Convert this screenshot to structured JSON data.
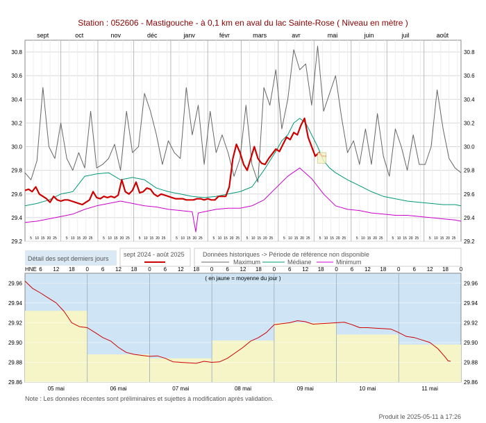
{
  "title": "Station : 052606     -   Mastigouche - à 0,1 km en aval du lac Sainte-Rose   ( Niveau en mètre )",
  "legend": {
    "recent_box": "Détail des sept derniers jours",
    "period_label": "sept 2024 - août 2025",
    "historic_header": "Données historiques -> Période de référence non disponible",
    "max_label": "Maximum",
    "median_label": "Médiane",
    "min_label": "Minimum"
  },
  "bottom_header": "( en jaune = moyenne du jour )",
  "hne_label": "HNE",
  "note": "Note : Les données récentes sont préliminaires et sujettes à modification après validation.",
  "produced": "Produit le 2025-05-11 à 17:26",
  "colors": {
    "current": "#cc0000",
    "maximum": "#666666",
    "median": "#009977",
    "minimum": "#cc00cc",
    "recent_bg": "#cfe5f5",
    "daily_mean": "#f5f5c8"
  },
  "chart_data": [
    {
      "type": "line",
      "months": [
        "sept",
        "oct",
        "nov",
        "déc",
        "janv",
        "févr",
        "mars",
        "avr",
        "mai",
        "juin",
        "juil",
        "août"
      ],
      "ylim": [
        29.2,
        30.9
      ],
      "yticks": [
        "29.2",
        "29.4",
        "29.6",
        "29.8",
        "30.0",
        "30.2",
        "30.4",
        "30.6",
        "30.8"
      ],
      "day_ticks": [
        "5",
        "10",
        "15",
        "20",
        "25"
      ],
      "series": [
        {
          "name": "current",
          "x": [
            0,
            3,
            6,
            9,
            12,
            15,
            18,
            21,
            24,
            27,
            30,
            33,
            36,
            39,
            42,
            45,
            48,
            51,
            54,
            57,
            60,
            63,
            66,
            69,
            72,
            75,
            78,
            81,
            84,
            87,
            90,
            93,
            96,
            99,
            102,
            105,
            108,
            111,
            114,
            117,
            120,
            123,
            126,
            129,
            132,
            135,
            138,
            141,
            144,
            147,
            150,
            153,
            156,
            159,
            162,
            165,
            168,
            171,
            174,
            177,
            180,
            183,
            186,
            189,
            192,
            195,
            198,
            201,
            204,
            207,
            210,
            213,
            216,
            219,
            222,
            225,
            228,
            231,
            234,
            237,
            240,
            243,
            246,
            249,
            252
          ],
          "values": [
            29.63,
            29.64,
            29.62,
            29.66,
            29.6,
            29.58,
            29.56,
            29.53,
            29.58,
            29.55,
            29.54,
            29.55,
            29.55,
            29.54,
            29.53,
            29.52,
            29.51,
            29.53,
            29.55,
            29.62,
            29.57,
            29.56,
            29.58,
            29.57,
            29.58,
            29.57,
            29.59,
            29.72,
            29.62,
            29.6,
            29.63,
            29.7,
            29.61,
            29.62,
            29.65,
            29.64,
            29.6,
            29.58,
            29.6,
            29.59,
            29.58,
            29.57,
            29.56,
            29.56,
            29.56,
            29.55,
            29.55,
            29.55,
            29.56,
            29.56,
            29.55,
            29.56,
            29.55,
            29.55,
            29.58,
            29.58,
            29.58,
            29.66,
            29.9,
            30.02,
            29.95,
            29.85,
            29.8,
            29.9,
            30.0,
            29.9,
            29.86,
            29.85,
            29.9,
            29.94,
            29.98,
            29.96,
            30.02,
            30.08,
            30.06,
            30.12,
            30.1,
            30.18,
            30.24,
            30.08,
            30.0,
            29.92,
            29.95,
            29.92,
            29.92
          ]
        },
        {
          "name": "Maximum",
          "x": [
            0,
            5,
            10,
            15,
            20,
            25,
            30,
            35,
            40,
            45,
            50,
            55,
            60,
            65,
            70,
            75,
            80,
            85,
            90,
            95,
            100,
            105,
            110,
            115,
            120,
            125,
            130,
            135,
            140,
            145,
            150,
            155,
            160,
            165,
            170,
            175,
            180,
            185,
            190,
            195,
            200,
            205,
            210,
            215,
            220,
            225,
            230,
            235,
            240,
            245,
            250,
            255,
            260,
            265,
            270,
            275,
            280,
            285,
            290,
            295,
            300,
            305,
            310,
            315,
            320,
            325,
            330,
            335,
            340,
            345,
            350,
            355,
            360,
            365
          ],
          "values": [
            29.78,
            29.72,
            29.88,
            30.5,
            30.0,
            29.9,
            30.2,
            29.9,
            29.8,
            29.95,
            29.82,
            30.3,
            29.82,
            29.85,
            29.9,
            30.02,
            29.8,
            30.3,
            29.95,
            30.0,
            30.45,
            30.3,
            30.1,
            29.85,
            30.05,
            29.95,
            29.9,
            30.5,
            30.1,
            30.35,
            29.85,
            30.3,
            29.95,
            30.1,
            29.95,
            29.75,
            29.9,
            30.35,
            29.85,
            29.7,
            30.5,
            30.35,
            30.65,
            30.15,
            30.4,
            30.82,
            30.65,
            30.7,
            30.35,
            30.85,
            30.3,
            30.45,
            30.6,
            30.25,
            29.95,
            30.05,
            29.85,
            30.15,
            29.85,
            30.28,
            29.92,
            29.75,
            30.15,
            30.0,
            29.8,
            30.1,
            29.85,
            29.85,
            30.0,
            30.48,
            30.15,
            29.9,
            29.82,
            29.78
          ]
        },
        {
          "name": "Médiane",
          "x": [
            0,
            10,
            20,
            30,
            40,
            50,
            60,
            70,
            80,
            90,
            100,
            110,
            120,
            130,
            140,
            150,
            160,
            170,
            180,
            190,
            200,
            210,
            215,
            220,
            225,
            230,
            235,
            240,
            245,
            250,
            255,
            260,
            270,
            280,
            290,
            300,
            310,
            320,
            330,
            340,
            350,
            360,
            365
          ],
          "values": [
            29.5,
            29.52,
            29.55,
            29.6,
            29.62,
            29.75,
            29.77,
            29.78,
            29.72,
            29.74,
            29.72,
            29.65,
            29.62,
            29.6,
            29.58,
            29.57,
            29.58,
            29.6,
            29.62,
            29.66,
            29.8,
            29.96,
            30.05,
            30.1,
            30.2,
            30.24,
            30.2,
            30.1,
            30.0,
            29.88,
            29.82,
            29.78,
            29.72,
            29.67,
            29.62,
            29.58,
            29.56,
            29.54,
            29.53,
            29.52,
            29.51,
            29.51,
            29.5
          ]
        },
        {
          "name": "Minimum",
          "x": [
            0,
            10,
            20,
            30,
            40,
            50,
            60,
            70,
            80,
            90,
            100,
            110,
            120,
            130,
            140,
            143,
            145,
            150,
            160,
            170,
            180,
            190,
            200,
            210,
            220,
            230,
            240,
            250,
            260,
            270,
            280,
            290,
            300,
            310,
            320,
            330,
            340,
            350,
            360,
            365
          ],
          "values": [
            29.36,
            29.37,
            29.39,
            29.41,
            29.43,
            29.47,
            29.5,
            29.52,
            29.54,
            29.52,
            29.5,
            29.49,
            29.47,
            29.46,
            29.45,
            29.28,
            29.44,
            29.45,
            29.47,
            29.48,
            29.48,
            29.5,
            29.55,
            29.65,
            29.75,
            29.82,
            29.73,
            29.6,
            29.5,
            29.47,
            29.46,
            29.44,
            29.43,
            29.42,
            29.42,
            29.41,
            29.4,
            29.39,
            29.38,
            29.37
          ]
        }
      ]
    },
    {
      "type": "line",
      "title": "( en jaune = moyenne du jour )",
      "categories": [
        "05 mai",
        "06 mai",
        "07 mai",
        "08 mai",
        "09 mai",
        "10 mai",
        "11 mai"
      ],
      "hour_ticks": [
        "6",
        "12",
        "18",
        "0"
      ],
      "ylim": [
        29.86,
        29.97
      ],
      "yticks": [
        "29.86",
        "29.88",
        "29.90",
        "29.92",
        "29.94",
        "29.96"
      ],
      "daily_mean": [
        29.932,
        29.888,
        29.884,
        29.902,
        29.92,
        29.908,
        29.898
      ],
      "series": [
        {
          "name": "current",
          "x": [
            0,
            6,
            12,
            18,
            24,
            30,
            36,
            42,
            48,
            54,
            60,
            66,
            72,
            78,
            84,
            90,
            96,
            102,
            108,
            114,
            120,
            126,
            132,
            138,
            144,
            150,
            156,
            162,
            164
          ],
          "values": [
            29.962,
            29.95,
            29.94,
            29.92,
            29.915,
            29.905,
            29.895,
            29.888,
            29.886,
            29.884,
            29.88,
            29.879,
            29.88,
            29.884,
            29.895,
            29.905,
            29.918,
            29.92,
            29.921,
            29.919,
            29.92,
            29.918,
            29.915,
            29.914,
            29.91,
            29.905,
            29.9,
            29.885,
            29.881
          ]
        }
      ]
    }
  ]
}
